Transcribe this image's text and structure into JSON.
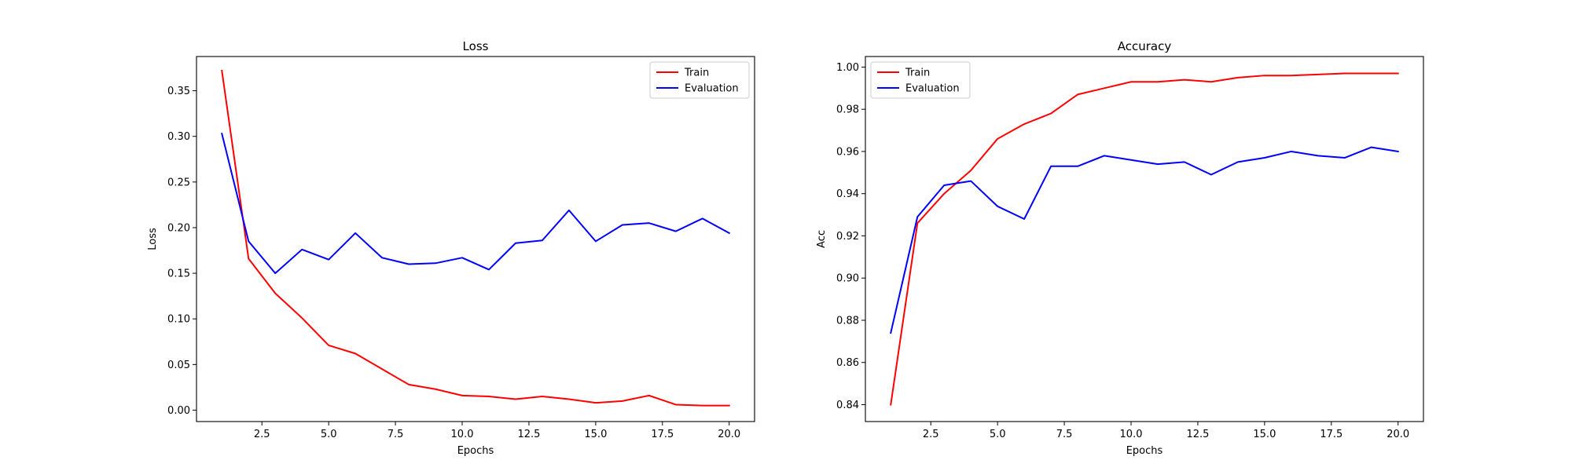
{
  "chart_data": [
    {
      "type": "line",
      "title": "Loss",
      "xlabel": "Epochs",
      "ylabel": "Loss",
      "xlim": [
        0.05,
        20.95
      ],
      "ylim": [
        -0.0125,
        0.3875
      ],
      "xticks": [
        2.5,
        5.0,
        7.5,
        10.0,
        12.5,
        15.0,
        17.5,
        20.0
      ],
      "xtick_labels": [
        "2.5",
        "5.0",
        "7.5",
        "10.0",
        "12.5",
        "15.0",
        "17.5",
        "20.0"
      ],
      "yticks": [
        0.0,
        0.05,
        0.1,
        0.15,
        0.2,
        0.25,
        0.3,
        0.35
      ],
      "ytick_labels": [
        "0.00",
        "0.05",
        "0.10",
        "0.15",
        "0.20",
        "0.25",
        "0.30",
        "0.35"
      ],
      "legend": "top-right",
      "grid": false,
      "x": [
        1,
        2,
        3,
        4,
        5,
        6,
        7,
        8,
        9,
        10,
        11,
        12,
        13,
        14,
        15,
        16,
        17,
        18,
        19,
        20
      ],
      "series": [
        {
          "name": "Train",
          "color": "#ff0000",
          "values": [
            0.372,
            0.166,
            0.128,
            0.101,
            0.071,
            0.062,
            0.045,
            0.028,
            0.023,
            0.016,
            0.015,
            0.012,
            0.015,
            0.012,
            0.008,
            0.01,
            0.016,
            0.006,
            0.005,
            0.005
          ]
        },
        {
          "name": "Evaluation",
          "color": "#0000ff",
          "values": [
            0.303,
            0.185,
            0.15,
            0.176,
            0.165,
            0.194,
            0.167,
            0.16,
            0.161,
            0.167,
            0.154,
            0.183,
            0.186,
            0.219,
            0.185,
            0.203,
            0.205,
            0.196,
            0.21,
            0.194
          ]
        }
      ]
    },
    {
      "type": "line",
      "title": "Accuracy",
      "xlabel": "Epochs",
      "ylabel": "Acc",
      "xlim": [
        0.05,
        20.95
      ],
      "ylim": [
        0.832,
        1.005
      ],
      "xticks": [
        2.5,
        5.0,
        7.5,
        10.0,
        12.5,
        15.0,
        17.5,
        20.0
      ],
      "xtick_labels": [
        "2.5",
        "5.0",
        "7.5",
        "10.0",
        "12.5",
        "15.0",
        "17.5",
        "20.0"
      ],
      "yticks": [
        0.84,
        0.86,
        0.88,
        0.9,
        0.92,
        0.94,
        0.96,
        0.98,
        1.0
      ],
      "ytick_labels": [
        "0.84",
        "0.86",
        "0.88",
        "0.90",
        "0.92",
        "0.94",
        "0.96",
        "0.98",
        "1.00"
      ],
      "legend": "top-left",
      "grid": false,
      "x": [
        1,
        2,
        3,
        4,
        5,
        6,
        7,
        8,
        9,
        10,
        11,
        12,
        13,
        14,
        15,
        16,
        17,
        18,
        19,
        20
      ],
      "series": [
        {
          "name": "Train",
          "color": "#ff0000",
          "values": [
            0.84,
            0.926,
            0.94,
            0.951,
            0.966,
            0.973,
            0.978,
            0.987,
            0.99,
            0.993,
            0.993,
            0.994,
            0.993,
            0.995,
            0.996,
            0.996,
            0.9965,
            0.997,
            0.997,
            0.997
          ]
        },
        {
          "name": "Evaluation",
          "color": "#0000ff",
          "values": [
            0.874,
            0.929,
            0.944,
            0.946,
            0.934,
            0.928,
            0.953,
            0.953,
            0.958,
            0.956,
            0.954,
            0.955,
            0.949,
            0.955,
            0.957,
            0.96,
            0.958,
            0.957,
            0.962,
            0.96
          ]
        }
      ]
    }
  ]
}
